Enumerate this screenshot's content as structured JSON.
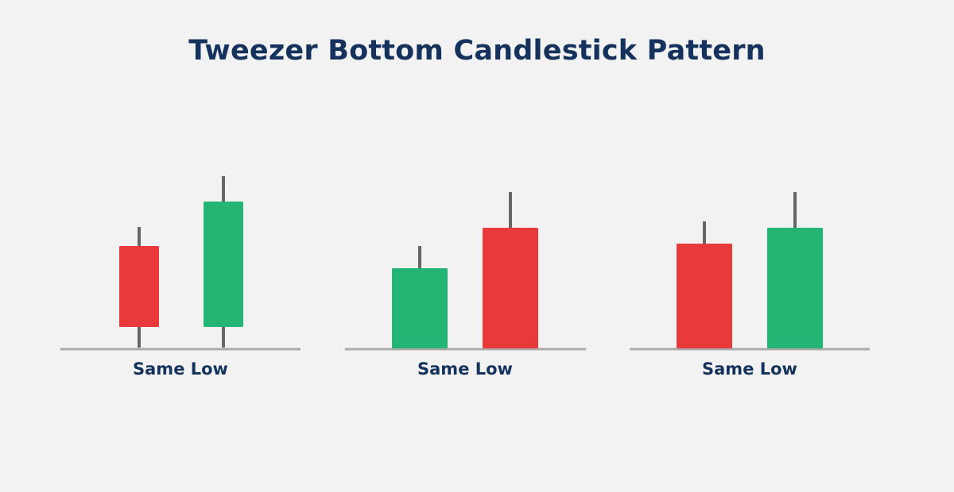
{
  "title": "Tweezer Bottom Candlestick Pattern",
  "colors": {
    "background": "#f2f2f2",
    "title": "#14325c",
    "bearish": "#e8393b",
    "bullish": "#22b573",
    "wick": "#666666",
    "baseline": "#aaaaaa"
  },
  "groups": [
    {
      "label": "Same Low",
      "candles": [
        {
          "kind": "bearish"
        },
        {
          "kind": "bullish"
        }
      ]
    },
    {
      "label": "Same Low",
      "candles": [
        {
          "kind": "bullish"
        },
        {
          "kind": "bearish"
        }
      ]
    },
    {
      "label": "Same Low",
      "candles": [
        {
          "kind": "bearish"
        },
        {
          "kind": "bullish"
        }
      ]
    }
  ]
}
